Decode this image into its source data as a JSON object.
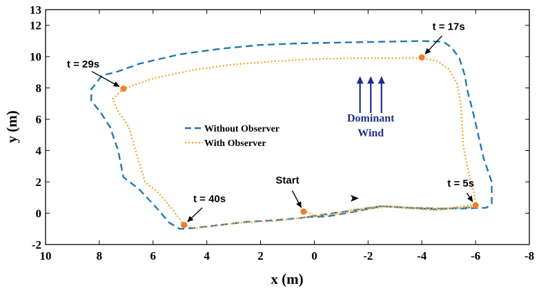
{
  "chart_data": {
    "type": "line",
    "title": "",
    "xlabel": "x (m)",
    "ylabel": "y (m)",
    "xlim": [
      10,
      -8
    ],
    "ylim": [
      -2,
      13
    ],
    "x_reversed": true,
    "grid": false,
    "legend_placement": "center-left",
    "x_ticks": [
      "10",
      "8",
      "6",
      "4",
      "2",
      "0",
      "-2",
      "-4",
      "-6",
      "-8"
    ],
    "x_tick_values": [
      10,
      8,
      6,
      4,
      2,
      0,
      -2,
      -4,
      -6,
      -8
    ],
    "y_ticks": [
      "-2",
      "0",
      "2",
      "4",
      "6",
      "8",
      "10",
      "12",
      "13"
    ],
    "y_tick_values": [
      -2,
      0,
      2,
      4,
      6,
      8,
      10,
      12,
      13
    ],
    "series": [
      {
        "name": "Without Observer",
        "color": "#1f77b4",
        "style": "dashed",
        "points": [
          [
            0.3,
            -0.25
          ],
          [
            -0.5,
            -0.2
          ],
          [
            -1.5,
            0.1
          ],
          [
            -2.5,
            0.45
          ],
          [
            -3.5,
            0.35
          ],
          [
            -4.5,
            0.3
          ],
          [
            -5.5,
            0.3
          ],
          [
            -6.4,
            0.35
          ],
          [
            -6.6,
            0.6
          ],
          [
            -6.6,
            2.0
          ],
          [
            -6.3,
            3.5
          ],
          [
            -6.1,
            5.0
          ],
          [
            -5.9,
            6.5
          ],
          [
            -5.7,
            7.8
          ],
          [
            -5.6,
            8.8
          ],
          [
            -5.4,
            9.9
          ],
          [
            -5.1,
            10.6
          ],
          [
            -4.8,
            10.95
          ],
          [
            -4.0,
            11.0
          ],
          [
            -2.5,
            10.95
          ],
          [
            -1.0,
            10.9
          ],
          [
            0.5,
            10.85
          ],
          [
            2.0,
            10.75
          ],
          [
            3.5,
            10.5
          ],
          [
            5.0,
            10.15
          ],
          [
            6.5,
            9.55
          ],
          [
            7.4,
            9.0
          ],
          [
            7.9,
            8.8
          ],
          [
            8.3,
            7.9
          ],
          [
            8.3,
            7.2
          ],
          [
            7.9,
            6.3
          ],
          [
            7.6,
            5.5
          ],
          [
            7.3,
            4.0
          ],
          [
            7.1,
            2.3
          ],
          [
            6.5,
            1.5
          ],
          [
            5.9,
            0.4
          ],
          [
            5.4,
            -0.6
          ],
          [
            5.0,
            -1.0
          ],
          [
            4.5,
            -0.95
          ],
          [
            3.5,
            -0.75
          ],
          [
            2.5,
            -0.55
          ],
          [
            1.5,
            -0.45
          ],
          [
            0.5,
            -0.3
          ],
          [
            -0.5,
            -0.05
          ],
          [
            -1.5,
            0.2
          ],
          [
            -2.5,
            0.45
          ],
          [
            -3.5,
            0.35
          ],
          [
            -4.5,
            0.25
          ],
          [
            -5.5,
            0.35
          ],
          [
            -6.0,
            0.38
          ]
        ]
      },
      {
        "name": "With Observer",
        "color": "#f0a830",
        "style": "dotted",
        "points": [
          [
            0.3,
            0.1
          ],
          [
            0.0,
            -0.15
          ],
          [
            -0.8,
            -0.05
          ],
          [
            -1.8,
            0.2
          ],
          [
            -2.8,
            0.45
          ],
          [
            -3.8,
            0.35
          ],
          [
            -4.8,
            0.3
          ],
          [
            -6.0,
            0.55
          ],
          [
            -5.95,
            1.2
          ],
          [
            -5.75,
            2.5
          ],
          [
            -5.55,
            4.2
          ],
          [
            -5.5,
            5.5
          ],
          [
            -5.45,
            7.0
          ],
          [
            -5.3,
            8.3
          ],
          [
            -5.0,
            9.2
          ],
          [
            -4.6,
            9.7
          ],
          [
            -4.0,
            9.9
          ],
          [
            -2.8,
            9.9
          ],
          [
            -1.5,
            9.9
          ],
          [
            0.0,
            9.85
          ],
          [
            1.5,
            9.7
          ],
          [
            3.0,
            9.5
          ],
          [
            4.5,
            9.15
          ],
          [
            6.0,
            8.6
          ],
          [
            7.1,
            7.95
          ],
          [
            7.5,
            7.3
          ],
          [
            7.3,
            6.5
          ],
          [
            6.9,
            5.5
          ],
          [
            6.6,
            3.7
          ],
          [
            6.3,
            2.0
          ],
          [
            5.8,
            1.3
          ],
          [
            5.3,
            0.3
          ],
          [
            4.85,
            -0.75
          ],
          [
            4.4,
            -0.95
          ],
          [
            3.3,
            -0.7
          ],
          [
            2.2,
            -0.55
          ],
          [
            1.2,
            -0.45
          ],
          [
            0.5,
            -0.3
          ],
          [
            -0.5,
            -0.1
          ],
          [
            -1.5,
            0.25
          ],
          [
            -2.5,
            0.45
          ],
          [
            -3.5,
            0.3
          ],
          [
            -4.5,
            0.2
          ],
          [
            -5.5,
            0.35
          ],
          [
            -6.0,
            0.45
          ]
        ]
      }
    ],
    "markers": [
      {
        "label": "Start",
        "x": 0.4,
        "y": 0.1,
        "text_x": 1.0,
        "text_y": 1.9
      },
      {
        "label": "t = 5s",
        "x": -6.0,
        "y": 0.5,
        "text_x": -5.45,
        "text_y": 1.7
      },
      {
        "label": "t = 17s",
        "x": -4.0,
        "y": 9.95,
        "text_x": -5.0,
        "text_y": 11.7
      },
      {
        "label": "t = 29s",
        "x": 7.1,
        "y": 7.95,
        "text_x": 8.6,
        "text_y": 9.3
      },
      {
        "label": "t = 40s",
        "x": 4.85,
        "y": -0.75,
        "text_x": 3.9,
        "text_y": 0.7
      }
    ],
    "marker_color": "#ef7d2b",
    "direction_arrow": {
      "x": -1.5,
      "y": 0.95
    },
    "wind": {
      "label_line1": "Dominant",
      "label_line2": "Wind",
      "color": "#1f2f8a",
      "arrows_x": [
        -1.7,
        -2.1,
        -2.5
      ],
      "arrow_from_y": 6.4,
      "arrow_to_y": 8.8
    },
    "legend": [
      {
        "label": "Without Observer",
        "color": "#1f77b4",
        "style": "dashed"
      },
      {
        "label": "With Observer",
        "color": "#f0a830",
        "style": "dotted"
      }
    ]
  }
}
